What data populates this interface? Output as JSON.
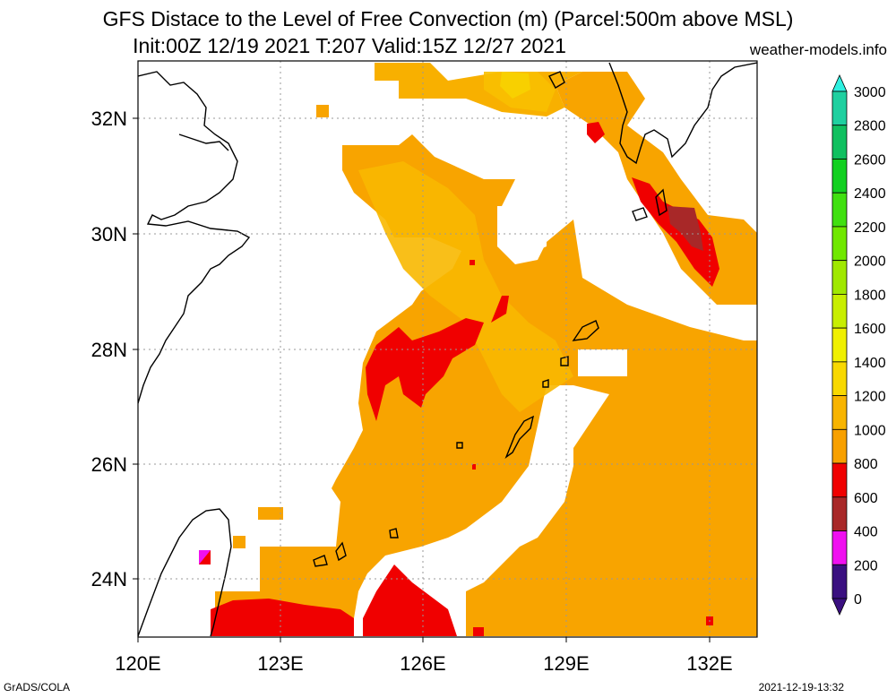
{
  "title_line1": "GFS Distace to the Level of Free Convection (m) (Parcel:500m above MSL)",
  "title_line2": "Init:00Z 12/19 2021 T:207 Valid:15Z 12/27 2021",
  "site": "weather-models.info",
  "footer_left": "GrADS/COLA",
  "footer_right": "2021-12-19-13:32",
  "map": {
    "lon_labels": [
      "120E",
      "123E",
      "126E",
      "129E",
      "132E"
    ],
    "lat_labels": [
      "32N",
      "30N",
      "28N",
      "26N",
      "24N"
    ]
  },
  "colorbar": {
    "labels": [
      "3000",
      "2800",
      "2600",
      "2400",
      "2200",
      "2000",
      "1800",
      "1600",
      "1400",
      "1200",
      "1000",
      "800",
      "600",
      "400",
      "200",
      "0"
    ],
    "colors": [
      "#2ef0e0",
      "#1fd0a0",
      "#10c060",
      "#12d020",
      "#40e010",
      "#70e800",
      "#a0e800",
      "#c8ee00",
      "#f0f000",
      "#f8d800",
      "#f8b400",
      "#f8a000",
      "#f00000",
      "#a82828",
      "#f010f0",
      "#3a1080"
    ]
  }
}
